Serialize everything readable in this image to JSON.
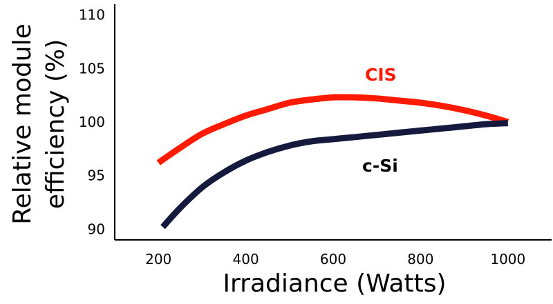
{
  "chart_data": {
    "type": "line",
    "xlabel": "Irradiance (Watts)",
    "ylabel_line1": "Relative module",
    "ylabel_line2": "efficiency (%)",
    "xlim": [
      100,
      1100
    ],
    "ylim": [
      89,
      111
    ],
    "x_ticks": [
      200,
      400,
      600,
      800,
      1000
    ],
    "y_ticks": [
      90,
      95,
      100,
      105,
      110
    ],
    "grid": false,
    "legend": "none (series labeled inline)",
    "series": [
      {
        "name": "CIS",
        "color": "#ff1a00",
        "x": [
          200,
          250,
          300,
          350,
          400,
          450,
          500,
          550,
          600,
          650,
          700,
          750,
          800,
          850,
          900,
          950,
          1000
        ],
        "y": [
          96.2,
          97.6,
          98.9,
          99.8,
          100.6,
          101.2,
          101.8,
          102.1,
          102.3,
          102.3,
          102.2,
          102.0,
          101.8,
          101.5,
          101.1,
          100.6,
          100.0
        ]
      },
      {
        "name": "c-Si",
        "color": "#14193d",
        "x": [
          210,
          250,
          300,
          350,
          400,
          450,
          500,
          550,
          600,
          650,
          700,
          750,
          800,
          850,
          900,
          950,
          1000
        ],
        "y": [
          90.2,
          92.0,
          93.9,
          95.3,
          96.4,
          97.2,
          97.8,
          98.2,
          98.4,
          98.6,
          98.8,
          99.0,
          99.2,
          99.4,
          99.6,
          99.8,
          99.9
        ]
      }
    ]
  }
}
